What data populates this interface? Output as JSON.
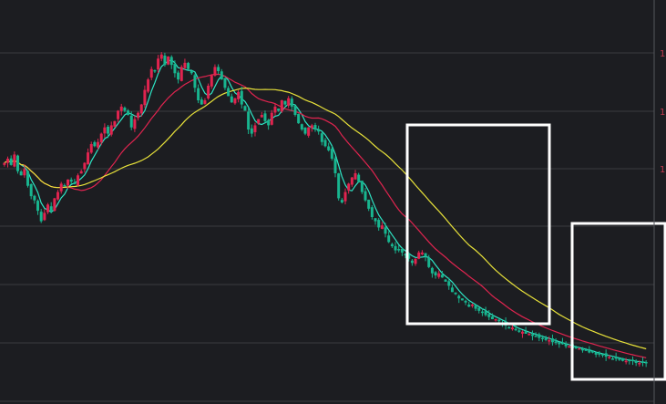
{
  "chart_data": {
    "type": "candlestick",
    "x": [
      1,
      2,
      3,
      4,
      5,
      6,
      7,
      8,
      9,
      10,
      11,
      12,
      13,
      14,
      15,
      16,
      17,
      18,
      19,
      20,
      21,
      22,
      23,
      24,
      25,
      26,
      27,
      28,
      29,
      30,
      31,
      32,
      33,
      34,
      35,
      36,
      37,
      38,
      39,
      40,
      41,
      42,
      43,
      44,
      45,
      46,
      47,
      48,
      49,
      50,
      51,
      52,
      53,
      54,
      55,
      56,
      57,
      58,
      59,
      60,
      61,
      62,
      63,
      64,
      65,
      66,
      67,
      68,
      69,
      70,
      71,
      72,
      73,
      74,
      75,
      76,
      77,
      78,
      79,
      80,
      81,
      82,
      83,
      84,
      85,
      86,
      87,
      88,
      89,
      90,
      91,
      92,
      93,
      94,
      95,
      96,
      97,
      98,
      99,
      100,
      101,
      102,
      103,
      104,
      105,
      106,
      107,
      108,
      109,
      110,
      111,
      112,
      113,
      114,
      115,
      116,
      117,
      118,
      119,
      120,
      121,
      122,
      123,
      124,
      125,
      126,
      127,
      128,
      129,
      130,
      131,
      132,
      133,
      134,
      135,
      136,
      137,
      138,
      139,
      140,
      141,
      142,
      143,
      144,
      145,
      146,
      147,
      148,
      149,
      150,
      151,
      152,
      153,
      154,
      155,
      156,
      157,
      158,
      159,
      160,
      161,
      162,
      163,
      164,
      165,
      166,
      167,
      168,
      169,
      170,
      171,
      172,
      173,
      174,
      175,
      176,
      177,
      178,
      179,
      180,
      181,
      182,
      183,
      184,
      185,
      186,
      187,
      188,
      189,
      190,
      191,
      192,
      193
    ],
    "close": [
      110,
      112,
      109,
      114,
      106,
      104,
      107,
      99,
      94,
      92,
      87,
      82,
      86,
      90,
      87,
      93,
      96,
      100,
      99,
      102,
      101,
      100,
      104,
      106,
      110,
      115,
      119,
      118,
      120,
      124,
      127,
      124,
      128,
      130,
      135,
      137,
      135,
      133,
      127,
      131,
      134,
      138,
      145,
      150,
      155,
      154,
      160,
      162,
      157,
      161,
      157,
      153,
      150,
      156,
      158,
      155,
      153,
      146,
      140,
      138,
      140,
      147,
      152,
      156,
      154,
      150,
      146,
      142,
      139,
      141,
      144,
      138,
      135,
      126,
      124,
      128,
      131,
      133,
      130,
      128,
      134,
      137,
      135,
      140,
      138,
      141,
      137,
      133,
      129,
      126,
      124,
      127,
      128,
      126,
      125,
      120,
      118,
      116,
      112,
      105,
      93,
      91,
      96,
      100,
      103,
      105,
      101,
      96,
      92,
      88,
      84,
      82,
      79,
      80,
      76,
      72,
      70,
      68,
      68,
      67,
      66,
      64,
      62,
      64,
      67,
      67,
      65,
      60,
      57,
      56,
      57,
      55,
      53,
      51,
      48,
      47,
      45,
      44,
      43,
      41,
      42,
      40,
      39,
      38,
      37,
      36,
      35,
      35,
      34,
      33,
      32,
      31,
      31,
      30,
      29,
      29,
      28,
      28,
      27,
      27,
      26,
      26,
      25,
      25,
      24,
      24,
      23,
      23,
      22,
      22,
      21,
      21,
      21,
      20,
      20,
      19,
      19,
      18,
      18,
      18,
      17,
      17,
      16,
      16,
      16,
      15,
      15,
      15,
      15,
      14,
      14,
      14,
      14
    ],
    "ylim": [
      0,
      175
    ],
    "y_tick_labels": [
      "1",
      "1",
      "1",
      "",
      "",
      "",
      ""
    ],
    "series": [
      {
        "name": "",
        "color": "#2ee6c6"
      },
      {
        "name": "",
        "color": "#e0244f"
      },
      {
        "name": "",
        "color": "#e8e23a"
      }
    ],
    "annotation_boxes": 2,
    "grid": true
  }
}
